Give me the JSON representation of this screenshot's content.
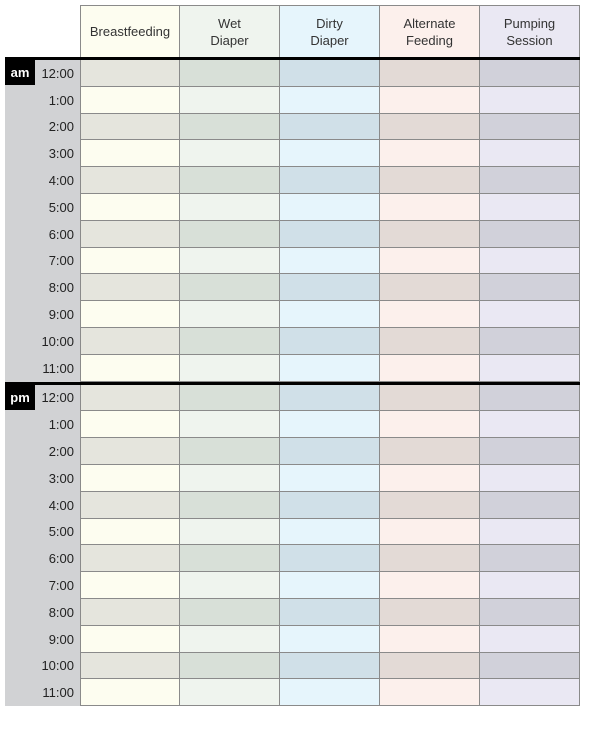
{
  "columns": [
    {
      "label": "Breastfeeding",
      "light": "#fdfdf0",
      "dark": "#e5e5dd"
    },
    {
      "label": "Wet\nDiaper",
      "light": "#eff4ee",
      "dark": "#d8e0d8"
    },
    {
      "label": "Dirty\nDiaper",
      "light": "#e6f5fc",
      "dark": "#d0e0e8"
    },
    {
      "label": "Alternate\nFeeding",
      "light": "#fcf0ec",
      "dark": "#e3dad6"
    },
    {
      "label": "Pumping\nSession",
      "light": "#eae8f3",
      "dark": "#d1d1da"
    }
  ],
  "sections": [
    {
      "period": "am",
      "times": [
        "12:00",
        "1:00",
        "2:00",
        "3:00",
        "4:00",
        "5:00",
        "6:00",
        "7:00",
        "8:00",
        "9:00",
        "10:00",
        "11:00"
      ]
    },
    {
      "period": "pm",
      "times": [
        "12:00",
        "1:00",
        "2:00",
        "3:00",
        "4:00",
        "5:00",
        "6:00",
        "7:00",
        "8:00",
        "9:00",
        "10:00",
        "11:00"
      ]
    }
  ]
}
